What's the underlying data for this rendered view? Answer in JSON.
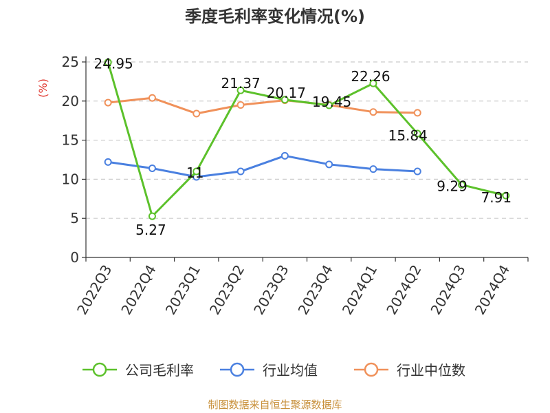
{
  "chart_data": {
    "type": "line",
    "title": "季度毛利率变化情况(%)",
    "ylabel": "(%)",
    "xlabel": "",
    "ylim": [
      0,
      25
    ],
    "yticks": [
      0,
      5,
      10,
      15,
      20,
      25
    ],
    "grid": true,
    "legend_position": "bottom",
    "categories": [
      "2022Q3",
      "2022Q4",
      "2023Q1",
      "2023Q2",
      "2023Q3",
      "2023Q4",
      "2024Q1",
      "2024Q2",
      "2024Q3",
      "2024Q4"
    ],
    "series": [
      {
        "name": "公司毛利率",
        "color": "#5cc12b",
        "values": [
          24.95,
          5.27,
          11,
          21.37,
          20.17,
          19.45,
          22.26,
          15.84,
          9.29,
          7.91
        ],
        "data_labels": [
          "24.95",
          "5.27",
          "11",
          "21.37",
          "20.17",
          "19.45",
          "22.26",
          "15.84",
          "9.29",
          "7.91"
        ]
      },
      {
        "name": "行业均值",
        "color": "#4a80e0",
        "values": [
          12.2,
          11.4,
          10.3,
          11.0,
          13.0,
          11.9,
          11.3,
          11.0,
          null,
          null
        ]
      },
      {
        "name": "行业中位数",
        "color": "#f0915a",
        "values": [
          19.8,
          20.4,
          18.4,
          19.5,
          20.1,
          19.5,
          18.6,
          18.5,
          null,
          null
        ]
      }
    ],
    "source": "制图数据来自恒生聚源数据库"
  }
}
